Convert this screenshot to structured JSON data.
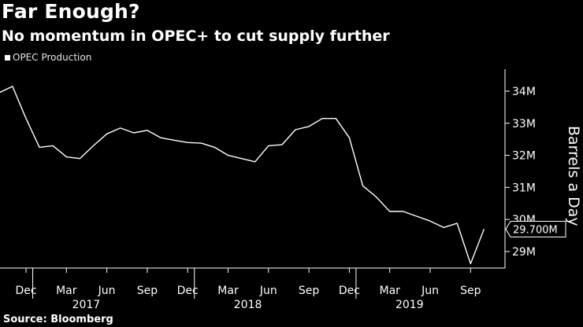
{
  "title": "Far Enough?",
  "subtitle": "No momentum in OPEC+ to cut supply further",
  "source": "Source: Bloomberg",
  "chart_data": {
    "type": "line",
    "title": "Far Enough?",
    "subtitle": "No momentum in OPEC+ to cut supply further",
    "ylabel": "Barrels a Day",
    "ylim": [
      28.5,
      34.6
    ],
    "y_ticks": [
      {
        "value": 34,
        "label": "34M"
      },
      {
        "value": 33,
        "label": "33M"
      },
      {
        "value": 32,
        "label": "32M"
      },
      {
        "value": 31,
        "label": "31M"
      },
      {
        "value": 30,
        "label": "30M"
      },
      {
        "value": 29,
        "label": "29M"
      }
    ],
    "x_ticks": [
      {
        "month": "2016-12",
        "label": "Dec"
      },
      {
        "month": "2017-03",
        "label": "Mar"
      },
      {
        "month": "2017-06",
        "label": "Jun"
      },
      {
        "month": "2017-09",
        "label": "Sep"
      },
      {
        "month": "2017-12",
        "label": "Dec"
      },
      {
        "month": "2018-03",
        "label": "Mar"
      },
      {
        "month": "2018-06",
        "label": "Jun"
      },
      {
        "month": "2018-09",
        "label": "Sep"
      },
      {
        "month": "2018-12",
        "label": "Dec"
      },
      {
        "month": "2019-03",
        "label": "Mar"
      },
      {
        "month": "2019-06",
        "label": "Jun"
      },
      {
        "month": "2019-09",
        "label": "Sep"
      }
    ],
    "year_labels": [
      {
        "month": "2017-04",
        "label": "2017"
      },
      {
        "month": "2018-04",
        "label": "2018"
      },
      {
        "month": "2019-04",
        "label": "2019"
      }
    ],
    "series": [
      {
        "name": "OPEC Production",
        "color": "#ffffff",
        "last_value_label": "29.700M",
        "x": [
          "2016-10",
          "2016-11",
          "2016-12",
          "2017-01",
          "2017-02",
          "2017-03",
          "2017-04",
          "2017-05",
          "2017-06",
          "2017-07",
          "2017-08",
          "2017-09",
          "2017-10",
          "2017-11",
          "2017-12",
          "2018-01",
          "2018-02",
          "2018-03",
          "2018-04",
          "2018-05",
          "2018-06",
          "2018-07",
          "2018-08",
          "2018-09",
          "2018-10",
          "2018-11",
          "2018-12",
          "2019-01",
          "2019-02",
          "2019-03",
          "2019-04",
          "2019-05",
          "2019-06",
          "2019-07",
          "2019-08",
          "2019-09",
          "2019-10"
        ],
        "values": [
          33.95,
          34.15,
          33.15,
          32.25,
          32.3,
          31.95,
          31.9,
          32.3,
          32.67,
          32.85,
          32.7,
          32.78,
          32.55,
          32.47,
          32.4,
          32.38,
          32.25,
          32.0,
          31.9,
          31.8,
          32.3,
          32.33,
          32.8,
          32.9,
          33.15,
          33.15,
          32.55,
          31.05,
          30.7,
          30.25,
          30.25,
          30.1,
          29.95,
          29.75,
          29.88,
          28.62,
          29.7
        ]
      }
    ]
  }
}
